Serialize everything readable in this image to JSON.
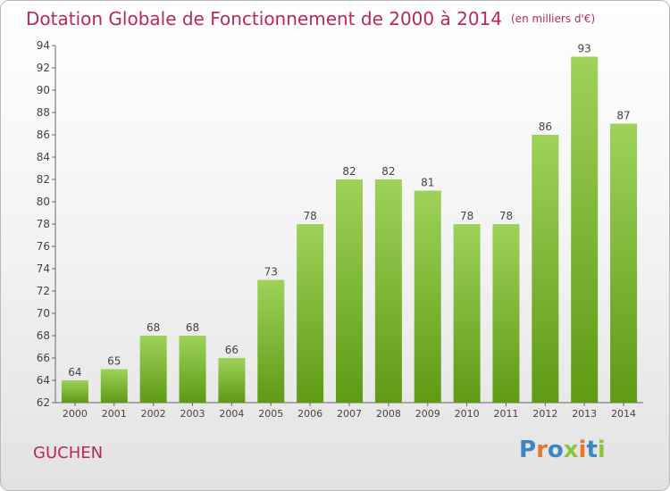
{
  "header": {
    "title": "Dotation Globale de Fonctionnement de 2000 à 2014",
    "unit": "(en milliers d'€)"
  },
  "footer": {
    "commune": "GUCHEN",
    "logo_letters": [
      "P",
      "r",
      "o",
      "x",
      "i",
      "t",
      "i"
    ]
  },
  "colors": {
    "title": "#b8285a",
    "bar_top": "#9ed25a",
    "bar_bottom": "#5e9a14"
  },
  "chart_data": {
    "type": "bar",
    "title": "Dotation Globale de Fonctionnement de 2000 à 2014",
    "subtitle": "(en milliers d'€)",
    "xlabel": "",
    "ylabel": "",
    "categories": [
      "2000",
      "2001",
      "2002",
      "2003",
      "2004",
      "2005",
      "2006",
      "2007",
      "2008",
      "2009",
      "2010",
      "2011",
      "2012",
      "2013",
      "2014"
    ],
    "values": [
      64,
      65,
      68,
      68,
      66,
      73,
      78,
      82,
      82,
      81,
      78,
      78,
      86,
      93,
      87
    ],
    "ylim": [
      62,
      94
    ],
    "yticks": [
      62,
      64,
      66,
      68,
      70,
      72,
      74,
      76,
      78,
      80,
      82,
      84,
      86,
      88,
      90,
      92,
      94
    ],
    "grid": false,
    "legend": "none"
  }
}
